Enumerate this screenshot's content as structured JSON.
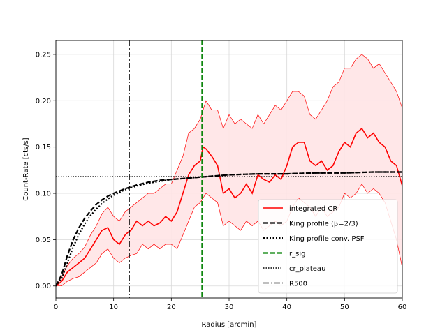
{
  "chart_data": {
    "type": "line",
    "xlabel": "Radius [arcmin]",
    "ylabel": "Count-Rate [cts/s]",
    "xlim": [
      0,
      60
    ],
    "ylim": [
      -0.013,
      0.265
    ],
    "x_ticks": [
      "0",
      "10",
      "20",
      "30",
      "40",
      "50",
      "60"
    ],
    "y_ticks": [
      "0.00",
      "0.05",
      "0.10",
      "0.15",
      "0.20",
      "0.25"
    ],
    "grid": true,
    "legend_position": "lower-right",
    "colors": {
      "integrated": "#ff0000",
      "band_fill": "#ffe4e6",
      "king": "#000000",
      "r_sig": "#008000"
    },
    "series": [
      {
        "name": "integrated CR",
        "style": "solid",
        "color": "#ff0000",
        "x": [
          0,
          1,
          2,
          3,
          4,
          5,
          6,
          7,
          8,
          9,
          10,
          11,
          12,
          12.5,
          13,
          14,
          15,
          16,
          17,
          18,
          19,
          20,
          21,
          22,
          23,
          24,
          25,
          25.5,
          26,
          27,
          28,
          29,
          30,
          31,
          32,
          33,
          34,
          35,
          36,
          37,
          38,
          39,
          40,
          41,
          42,
          43,
          44,
          45,
          46,
          47,
          48,
          49,
          50,
          51,
          52,
          53,
          54,
          55,
          56,
          57,
          58,
          59,
          60
        ],
        "y": [
          0,
          0.005,
          0.015,
          0.02,
          0.025,
          0.03,
          0.04,
          0.05,
          0.06,
          0.063,
          0.05,
          0.045,
          0.055,
          0.058,
          0.06,
          0.07,
          0.065,
          0.07,
          0.065,
          0.068,
          0.075,
          0.07,
          0.08,
          0.1,
          0.12,
          0.13,
          0.135,
          0.15,
          0.148,
          0.14,
          0.13,
          0.1,
          0.105,
          0.095,
          0.1,
          0.11,
          0.1,
          0.12,
          0.115,
          0.112,
          0.12,
          0.115,
          0.13,
          0.15,
          0.155,
          0.155,
          0.135,
          0.13,
          0.135,
          0.125,
          0.13,
          0.145,
          0.155,
          0.15,
          0.165,
          0.17,
          0.16,
          0.165,
          0.155,
          0.15,
          0.135,
          0.13,
          0.108
        ]
      },
      {
        "name": "King profile (β=2/3)",
        "style": "dashed",
        "color": "#000000",
        "x": [
          0,
          1,
          2,
          3,
          4,
          5,
          6,
          7,
          8,
          9,
          10,
          12,
          14,
          16,
          18,
          20,
          22,
          24,
          26,
          28,
          30,
          35,
          40,
          45,
          50,
          55,
          60
        ],
        "y": [
          0,
          0.012,
          0.033,
          0.05,
          0.063,
          0.073,
          0.081,
          0.088,
          0.093,
          0.097,
          0.1,
          0.105,
          0.109,
          0.112,
          0.114,
          0.115,
          0.116,
          0.117,
          0.118,
          0.119,
          0.12,
          0.121,
          0.121,
          0.122,
          0.122,
          0.123,
          0.123
        ]
      },
      {
        "name": "King profile conv. PSF",
        "style": "dotted",
        "color": "#000000",
        "x": [
          0,
          1,
          2,
          3,
          4,
          5,
          6,
          7,
          8,
          9,
          10,
          12,
          14,
          16,
          18,
          20,
          22,
          24,
          26,
          28,
          30,
          35,
          40,
          45,
          50,
          55,
          60
        ],
        "y": [
          0,
          0.008,
          0.025,
          0.042,
          0.056,
          0.067,
          0.076,
          0.083,
          0.089,
          0.094,
          0.098,
          0.104,
          0.108,
          0.111,
          0.113,
          0.115,
          0.116,
          0.117,
          0.118,
          0.119,
          0.12,
          0.121,
          0.121,
          0.122,
          0.122,
          0.123,
          0.123
        ]
      }
    ],
    "band": {
      "x": [
        0,
        1,
        2,
        3,
        4,
        5,
        6,
        7,
        8,
        9,
        10,
        11,
        12,
        13,
        14,
        15,
        16,
        17,
        18,
        19,
        20,
        21,
        22,
        23,
        24,
        25,
        26,
        27,
        28,
        29,
        30,
        31,
        32,
        33,
        34,
        35,
        36,
        37,
        38,
        39,
        40,
        41,
        42,
        43,
        44,
        45,
        46,
        47,
        48,
        49,
        50,
        51,
        52,
        53,
        54,
        55,
        56,
        57,
        58,
        59,
        60
      ],
      "upper": [
        0,
        0.01,
        0.022,
        0.03,
        0.035,
        0.042,
        0.055,
        0.065,
        0.078,
        0.085,
        0.075,
        0.07,
        0.08,
        0.085,
        0.09,
        0.095,
        0.1,
        0.1,
        0.105,
        0.11,
        0.11,
        0.125,
        0.14,
        0.165,
        0.17,
        0.18,
        0.2,
        0.19,
        0.19,
        0.17,
        0.185,
        0.175,
        0.18,
        0.175,
        0.17,
        0.185,
        0.175,
        0.185,
        0.195,
        0.19,
        0.2,
        0.21,
        0.21,
        0.205,
        0.185,
        0.18,
        0.19,
        0.2,
        0.215,
        0.22,
        0.235,
        0.235,
        0.245,
        0.25,
        0.245,
        0.235,
        0.24,
        0.23,
        0.22,
        0.21,
        0.192
      ],
      "lower": [
        0,
        0.0,
        0.005,
        0.008,
        0.01,
        0.015,
        0.02,
        0.025,
        0.035,
        0.04,
        0.03,
        0.025,
        0.03,
        0.033,
        0.035,
        0.045,
        0.04,
        0.045,
        0.04,
        0.045,
        0.045,
        0.04,
        0.055,
        0.07,
        0.085,
        0.09,
        0.1,
        0.095,
        0.09,
        0.065,
        0.07,
        0.065,
        0.06,
        0.07,
        0.065,
        0.07,
        0.06,
        0.065,
        0.07,
        0.065,
        0.07,
        0.085,
        0.095,
        0.09,
        0.085,
        0.075,
        0.085,
        0.075,
        0.08,
        0.085,
        0.1,
        0.095,
        0.1,
        0.11,
        0.1,
        0.105,
        0.1,
        0.09,
        0.07,
        0.05,
        0.02
      ]
    },
    "hlines": [
      {
        "name": "cr_plateau",
        "y": 0.118,
        "style": "dotted",
        "color": "#000000"
      }
    ],
    "vlines": [
      {
        "name": "r_sig",
        "x": 25.3,
        "style": "dashed",
        "color": "#008000"
      },
      {
        "name": "R500",
        "x": 12.7,
        "style": "dashdot",
        "color": "#000000"
      }
    ],
    "legend": [
      {
        "label": "integrated CR",
        "style": "solid",
        "color": "#ff0000"
      },
      {
        "label": "King profile (β=2/3)",
        "style": "dashed",
        "color": "#000000"
      },
      {
        "label": "King profile conv. PSF",
        "style": "dotted",
        "color": "#000000"
      },
      {
        "label": "r_sig",
        "style": "dashed",
        "color": "#008000"
      },
      {
        "label": "cr_plateau",
        "style": "dotted-thin",
        "color": "#000000"
      },
      {
        "label": "R500",
        "style": "dashdot",
        "color": "#000000"
      }
    ]
  }
}
